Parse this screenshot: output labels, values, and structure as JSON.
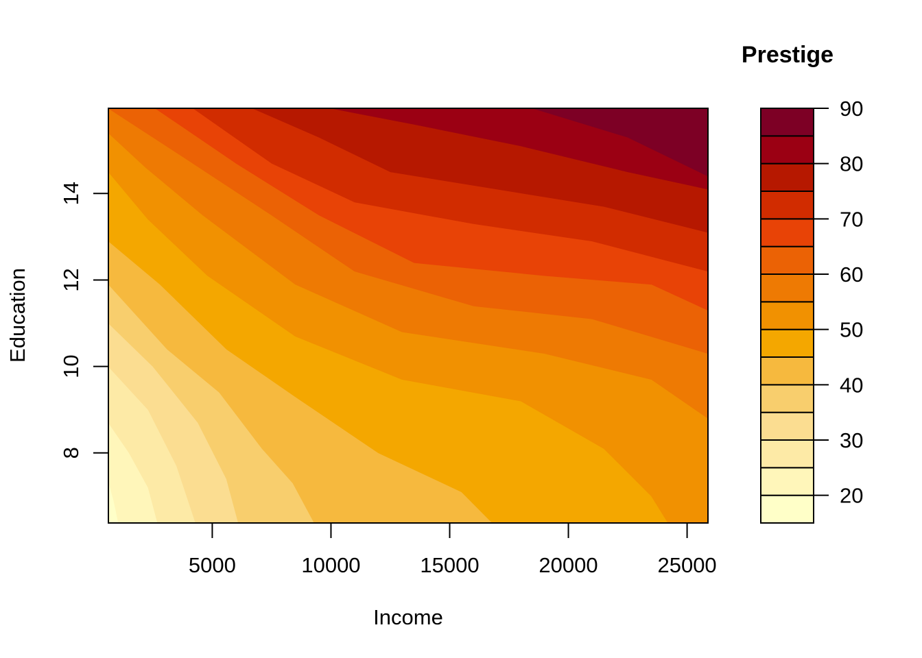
{
  "chart_data": {
    "type": "contour",
    "xlabel": "Income",
    "ylabel": "Education",
    "xlim": [
      625,
      25879
    ],
    "ylim": [
      6.38,
      15.97
    ],
    "x_ticks": [
      5000,
      10000,
      15000,
      20000,
      25000
    ],
    "x_tick_labels": [
      "5000",
      "10000",
      "15000",
      "20000",
      "25000"
    ],
    "y_ticks": [
      8,
      10,
      12,
      14
    ],
    "y_tick_labels": [
      "8",
      "10",
      "12",
      "14"
    ],
    "legend": {
      "title": "Prestige",
      "placement": "right",
      "breaks": [
        15,
        20,
        25,
        30,
        35,
        40,
        45,
        50,
        55,
        60,
        65,
        70,
        75,
        80,
        85,
        90
      ],
      "tick_values": [
        20,
        30,
        40,
        50,
        60,
        70,
        80,
        90
      ],
      "tick_labels": [
        "20",
        "30",
        "40",
        "50",
        "60",
        "70",
        "80",
        "90"
      ]
    },
    "fill_colors": [
      "#FFFFC8",
      "#FFF6BA",
      "#FDEAA6",
      "#FBDD91",
      "#F8CE6D",
      "#F6B93E",
      "#F4A700",
      "#F19101",
      "#EE7A03",
      "#EB6205",
      "#E84306",
      "#D12C00",
      "#B61800",
      "#9B0013",
      "#7D0025"
    ],
    "contour_lines": [
      {
        "level": 20,
        "points": [
          [
            625,
            7.35
          ],
          [
            850,
            6.9
          ],
          [
            1050,
            6.38
          ]
        ]
      },
      {
        "level": 25,
        "points": [
          [
            625,
            8.7
          ],
          [
            1500,
            8.0
          ],
          [
            2300,
            7.2
          ],
          [
            2700,
            6.38
          ]
        ]
      },
      {
        "level": 30,
        "points": [
          [
            625,
            10.0
          ],
          [
            2300,
            9.0
          ],
          [
            3500,
            7.7
          ],
          [
            4300,
            6.38
          ]
        ]
      },
      {
        "level": 35,
        "points": [
          [
            625,
            11.0
          ],
          [
            2500,
            10.0
          ],
          [
            4400,
            8.7
          ],
          [
            5600,
            7.4
          ],
          [
            6100,
            6.38
          ]
        ]
      },
      {
        "level": 40,
        "points": [
          [
            625,
            11.9
          ],
          [
            3100,
            10.4
          ],
          [
            5300,
            9.4
          ],
          [
            7100,
            8.1
          ],
          [
            8400,
            7.3
          ],
          [
            9300,
            6.38
          ]
        ]
      },
      {
        "level": 45,
        "points": [
          [
            625,
            12.9
          ],
          [
            2800,
            11.9
          ],
          [
            5600,
            10.4
          ],
          [
            8500,
            9.3
          ],
          [
            12000,
            8.0
          ],
          [
            15500,
            7.1
          ],
          [
            16800,
            6.38
          ]
        ]
      },
      {
        "level": 50,
        "points": [
          [
            625,
            14.5
          ],
          [
            2300,
            13.4
          ],
          [
            4800,
            12.1
          ],
          [
            8500,
            10.7
          ],
          [
            13000,
            9.7
          ],
          [
            18000,
            9.2
          ],
          [
            21500,
            8.1
          ],
          [
            23500,
            7.0
          ],
          [
            24200,
            6.38
          ]
        ]
      },
      {
        "level": 55,
        "points": [
          [
            625,
            15.4
          ],
          [
            2200,
            14.6
          ],
          [
            4600,
            13.5
          ],
          [
            8500,
            11.9
          ],
          [
            13000,
            10.8
          ],
          [
            19000,
            10.3
          ],
          [
            23500,
            9.7
          ],
          [
            25879,
            8.8
          ]
        ]
      },
      {
        "level": 60,
        "points": [
          [
            625,
            15.97
          ],
          [
            3900,
            14.8
          ],
          [
            7500,
            13.5
          ],
          [
            11000,
            12.2
          ],
          [
            16000,
            11.4
          ],
          [
            21000,
            11.1
          ],
          [
            25879,
            10.3
          ]
        ]
      },
      {
        "level": 65,
        "points": [
          [
            2600,
            15.97
          ],
          [
            6000,
            14.7
          ],
          [
            9500,
            13.5
          ],
          [
            13500,
            12.4
          ],
          [
            19000,
            12.1
          ],
          [
            23500,
            11.9
          ],
          [
            25879,
            11.3
          ]
        ]
      },
      {
        "level": 70,
        "points": [
          [
            4200,
            15.97
          ],
          [
            7500,
            14.7
          ],
          [
            11000,
            13.8
          ],
          [
            16000,
            13.3
          ],
          [
            21000,
            12.9
          ],
          [
            25879,
            12.2
          ]
        ]
      },
      {
        "level": 75,
        "points": [
          [
            6700,
            15.97
          ],
          [
            9500,
            15.3
          ],
          [
            12500,
            14.5
          ],
          [
            17000,
            14.1
          ],
          [
            21500,
            13.7
          ],
          [
            25879,
            13.1
          ]
        ]
      },
      {
        "level": 80,
        "points": [
          [
            10000,
            15.97
          ],
          [
            13500,
            15.6
          ],
          [
            18000,
            15.1
          ],
          [
            22500,
            14.5
          ],
          [
            25879,
            14.1
          ]
        ]
      },
      {
        "level": 85,
        "points": [
          [
            18500,
            15.97
          ],
          [
            22500,
            15.3
          ],
          [
            25879,
            14.4
          ]
        ]
      }
    ]
  }
}
